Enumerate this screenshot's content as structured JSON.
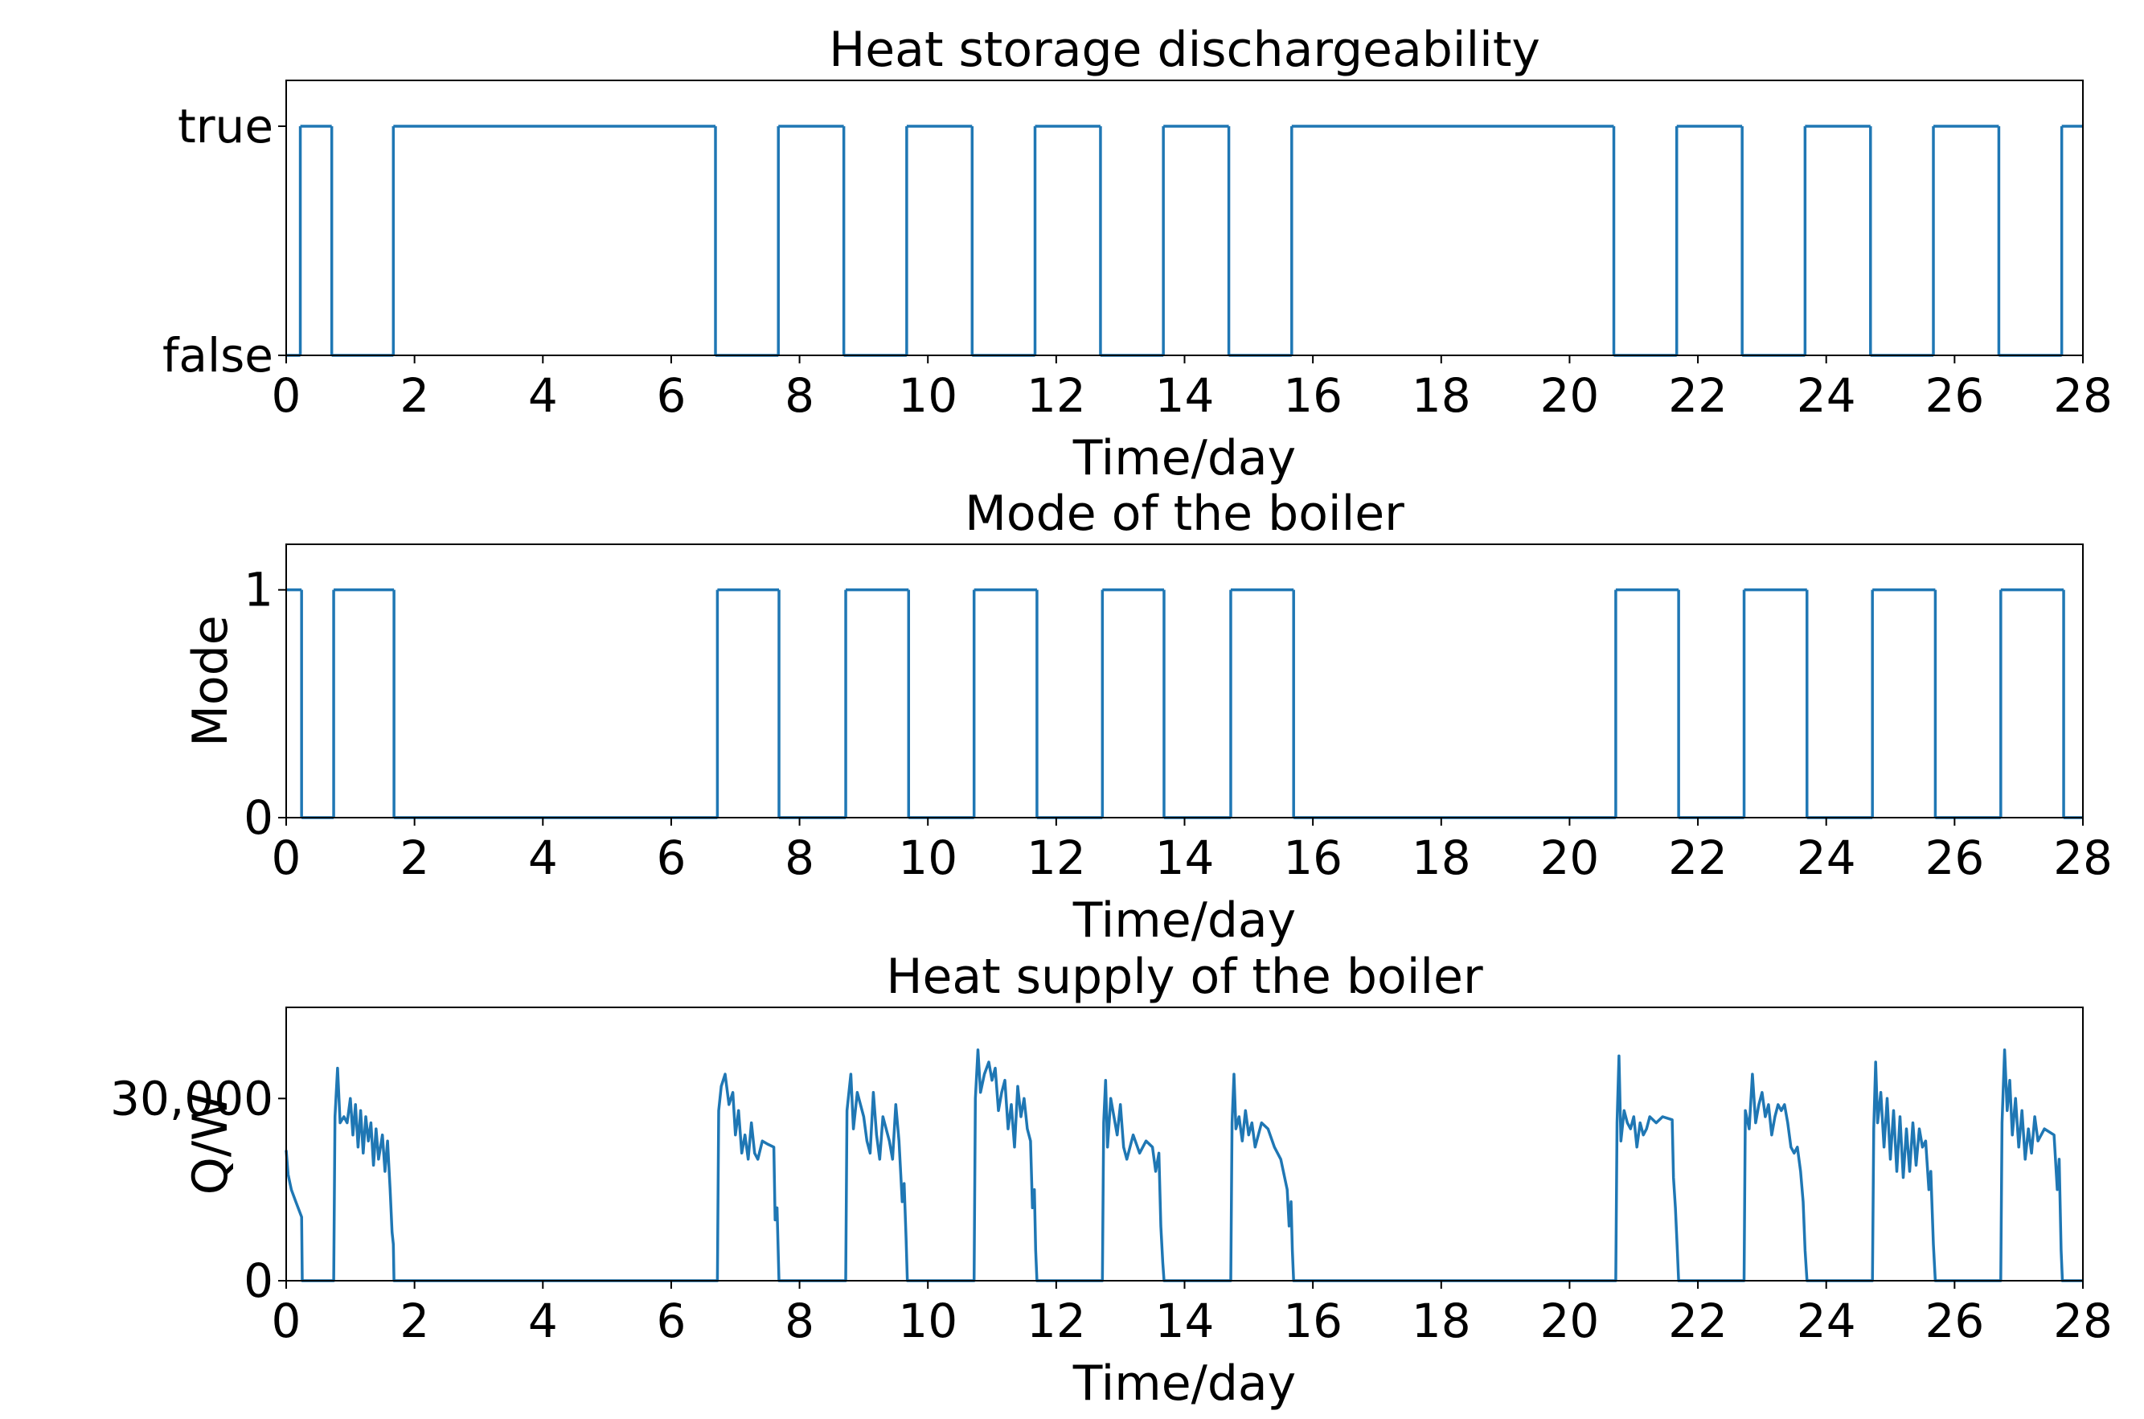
{
  "chart_data": [
    {
      "type": "step",
      "title": "Heat storage dischargeability",
      "xlabel": "Time/day",
      "color": "#1f77b4",
      "x": [
        0,
        0.22,
        0.71,
        1.67,
        6.69,
        7.67,
        8.69,
        9.67,
        10.69,
        11.67,
        12.69,
        13.67,
        14.69,
        15.67,
        20.69,
        21.67,
        22.69,
        23.67,
        24.69,
        25.67,
        26.69,
        27.67,
        28
      ],
      "values": [
        0,
        1,
        0,
        1,
        0,
        1,
        0,
        1,
        0,
        1,
        0,
        1,
        0,
        1,
        0,
        1,
        0,
        1,
        0,
        1,
        0,
        1,
        1
      ],
      "xlim": [
        0,
        28
      ],
      "ylim": [
        0,
        1.2
      ],
      "xticks": [
        0,
        2,
        4,
        6,
        8,
        10,
        12,
        14,
        16,
        18,
        20,
        22,
        24,
        26,
        28
      ],
      "yticks": [
        {
          "value": 0,
          "label": "false"
        },
        {
          "value": 1,
          "label": "true"
        }
      ]
    },
    {
      "type": "step",
      "title": "Mode of the boiler",
      "xlabel": "Time/day",
      "ylabel": "Mode",
      "color": "#1f77b4",
      "x": [
        0,
        0.24,
        0.74,
        1.68,
        6.72,
        7.68,
        8.72,
        9.7,
        10.72,
        11.7,
        12.72,
        13.68,
        14.72,
        15.7,
        20.72,
        21.7,
        22.72,
        23.7,
        24.72,
        25.7,
        26.72,
        27.7,
        28
      ],
      "values": [
        1,
        0,
        1,
        0,
        1,
        0,
        1,
        0,
        1,
        0,
        1,
        0,
        1,
        0,
        1,
        0,
        1,
        0,
        1,
        0,
        1,
        0,
        0
      ],
      "xlim": [
        0,
        28
      ],
      "ylim": [
        0,
        1.2
      ],
      "xticks": [
        0,
        2,
        4,
        6,
        8,
        10,
        12,
        14,
        16,
        18,
        20,
        22,
        24,
        26,
        28
      ],
      "yticks": [
        0,
        1
      ]
    },
    {
      "type": "line",
      "title": "Heat supply of the boiler",
      "xlabel": "Time/day",
      "ylabel": "Q/W",
      "color": "#1f77b4",
      "x": [
        0,
        0.03,
        0.08,
        0.15,
        0.24,
        0.25,
        0.74,
        0.76,
        0.8,
        0.84,
        0.9,
        0.95,
        1.0,
        1.04,
        1.08,
        1.12,
        1.16,
        1.2,
        1.24,
        1.28,
        1.32,
        1.36,
        1.4,
        1.44,
        1.5,
        1.54,
        1.58,
        1.62,
        1.65,
        1.67,
        1.68,
        6.72,
        6.74,
        6.78,
        6.84,
        6.9,
        6.96,
        7.0,
        7.05,
        7.1,
        7.15,
        7.2,
        7.25,
        7.3,
        7.35,
        7.42,
        7.5,
        7.6,
        7.62,
        7.65,
        7.67,
        7.68,
        8.72,
        8.74,
        8.8,
        8.84,
        8.9,
        8.95,
        9.0,
        9.05,
        9.1,
        9.15,
        9.2,
        9.25,
        9.3,
        9.35,
        9.4,
        9.45,
        9.5,
        9.55,
        9.6,
        9.63,
        9.66,
        9.68,
        10.72,
        10.74,
        10.78,
        10.82,
        10.88,
        10.95,
        11.0,
        11.05,
        11.1,
        11.15,
        11.2,
        11.25,
        11.3,
        11.35,
        11.4,
        11.45,
        11.5,
        11.55,
        11.6,
        11.63,
        11.66,
        11.68,
        11.7,
        12.72,
        12.74,
        12.77,
        12.8,
        12.85,
        12.9,
        12.95,
        13.0,
        13.05,
        13.1,
        13.2,
        13.3,
        13.4,
        13.5,
        13.55,
        13.6,
        13.63,
        13.66,
        13.68,
        14.72,
        14.74,
        14.77,
        14.8,
        14.85,
        14.9,
        14.95,
        15.0,
        15.05,
        15.1,
        15.2,
        15.3,
        15.4,
        15.5,
        15.6,
        15.63,
        15.66,
        15.68,
        15.7,
        20.72,
        20.74,
        20.77,
        20.8,
        20.85,
        20.9,
        20.95,
        21.0,
        21.05,
        21.1,
        21.15,
        21.2,
        21.25,
        21.35,
        21.45,
        21.6,
        21.62,
        21.65,
        21.68,
        21.7,
        22.72,
        22.74,
        22.8,
        22.85,
        22.9,
        22.95,
        23.0,
        23.05,
        23.1,
        23.15,
        23.2,
        23.25,
        23.3,
        23.35,
        23.4,
        23.45,
        23.5,
        23.55,
        23.6,
        23.64,
        23.67,
        23.7,
        24.72,
        24.74,
        24.77,
        24.8,
        24.85,
        24.9,
        24.95,
        25.0,
        25.05,
        25.1,
        25.15,
        25.2,
        25.25,
        25.3,
        25.35,
        25.4,
        25.45,
        25.5,
        25.55,
        25.6,
        25.63,
        25.67,
        25.7,
        26.72,
        26.74,
        26.78,
        26.82,
        26.86,
        26.9,
        26.95,
        27.0,
        27.05,
        27.1,
        27.15,
        27.2,
        27.25,
        27.3,
        27.4,
        27.55,
        27.6,
        27.63,
        27.66,
        27.68,
        28
      ],
      "values": [
        21500,
        17500,
        15000,
        13000,
        10500,
        0,
        0,
        27000,
        35000,
        26000,
        27000,
        26000,
        30000,
        24000,
        29000,
        22000,
        28000,
        21000,
        27000,
        23000,
        26000,
        19000,
        25000,
        20000,
        24000,
        18000,
        23000,
        15000,
        8000,
        6000,
        0,
        0,
        28000,
        32000,
        34000,
        29000,
        31000,
        24000,
        28000,
        21000,
        24000,
        20000,
        26000,
        21000,
        20000,
        23000,
        22500,
        22000,
        10000,
        12000,
        4000,
        0,
        0,
        28000,
        34000,
        25000,
        31000,
        29000,
        27000,
        23000,
        21000,
        31000,
        24000,
        20000,
        27000,
        25000,
        23000,
        20000,
        29000,
        23000,
        13000,
        16000,
        7000,
        0,
        0,
        30000,
        38000,
        31000,
        34000,
        36000,
        33000,
        35000,
        28000,
        31000,
        33000,
        25000,
        29000,
        22000,
        32000,
        27000,
        30000,
        25000,
        23000,
        12000,
        15000,
        5000,
        0,
        0,
        26000,
        33000,
        22000,
        30000,
        27000,
        24000,
        29000,
        22000,
        20000,
        24000,
        21000,
        23000,
        22000,
        18000,
        21000,
        9000,
        3000,
        0,
        0,
        26000,
        34000,
        25000,
        27000,
        23000,
        28000,
        24000,
        26000,
        22000,
        26000,
        25000,
        22000,
        20000,
        15000,
        9000,
        13000,
        5000,
        0,
        0,
        26000,
        37000,
        23000,
        28000,
        26000,
        25000,
        27000,
        22000,
        26000,
        24000,
        25000,
        27000,
        26000,
        27000,
        26500,
        17000,
        12000,
        5000,
        0,
        0,
        28000,
        25000,
        34000,
        26000,
        29000,
        31000,
        27000,
        29000,
        24000,
        27000,
        29000,
        28000,
        29000,
        26000,
        22000,
        21000,
        22000,
        18000,
        13000,
        5000,
        0,
        0,
        25000,
        36000,
        26000,
        31000,
        22000,
        30000,
        20000,
        28000,
        18000,
        27000,
        17000,
        25000,
        18000,
        26000,
        19000,
        25000,
        22000,
        23000,
        15000,
        18000,
        6000,
        0,
        0,
        26000,
        38000,
        28000,
        33000,
        24000,
        30000,
        22000,
        28000,
        20000,
        25000,
        21000,
        27000,
        23000,
        25000,
        24000,
        15000,
        20000,
        5000,
        0,
        0
      ],
      "xlim": [
        0,
        28
      ],
      "ylim": [
        0,
        45000
      ],
      "xticks": [
        0,
        2,
        4,
        6,
        8,
        10,
        12,
        14,
        16,
        18,
        20,
        22,
        24,
        26,
        28
      ],
      "yticks": [
        0,
        {
          "value": 30000,
          "label": "30,000"
        }
      ]
    }
  ]
}
